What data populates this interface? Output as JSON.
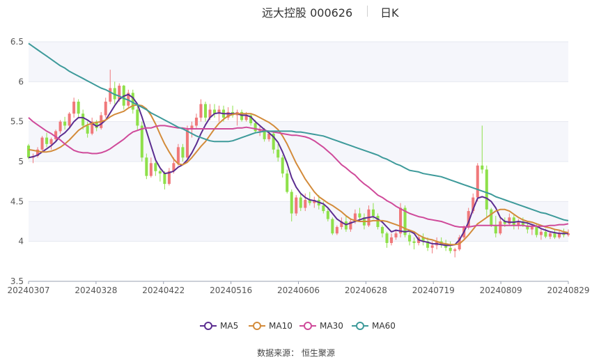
{
  "header": {
    "title": "远大控股 000626",
    "period": "日K"
  },
  "legend": {
    "items": [
      {
        "label": "MA5",
        "color": "#5b2d90"
      },
      {
        "label": "MA10",
        "color": "#d38b3a"
      },
      {
        "label": "MA30",
        "color": "#cf4a9a"
      },
      {
        "label": "MA60",
        "color": "#3d9a9a"
      }
    ]
  },
  "source": {
    "label": "数据来源：",
    "value": "恒生聚源"
  },
  "colors": {
    "up": "#f0787a",
    "down": "#8ee04a",
    "band": "#f5f6fb",
    "grid": "#e6e8f0"
  },
  "chart_data": {
    "type": "candlestick",
    "ylim": [
      3.5,
      6.5
    ],
    "yticks": [
      "3.5",
      "4",
      "4.5",
      "5",
      "5.5",
      "6",
      "6.5"
    ],
    "xticks": [
      "20240307",
      "20240328",
      "20240422",
      "20240516",
      "20240606",
      "20240628",
      "20240719",
      "20240809",
      "20240829"
    ],
    "grid": true,
    "legend_position": "bottom",
    "dates": [
      "20240307",
      "20240308",
      "20240311",
      "20240312",
      "20240313",
      "20240314",
      "20240315",
      "20240318",
      "20240319",
      "20240320",
      "20240321",
      "20240322",
      "20240325",
      "20240326",
      "20240327",
      "20240328",
      "20240329",
      "20240401",
      "20240402",
      "20240403",
      "20240408",
      "20240409",
      "20240410",
      "20240411",
      "20240412",
      "20240415",
      "20240416",
      "20240417",
      "20240418",
      "20240419",
      "20240422",
      "20240423",
      "20240424",
      "20240425",
      "20240426",
      "20240429",
      "20240430",
      "20240506",
      "20240507",
      "20240508",
      "20240509",
      "20240510",
      "20240513",
      "20240514",
      "20240515",
      "20240516",
      "20240517",
      "20240520",
      "20240521",
      "20240522",
      "20240523",
      "20240524",
      "20240527",
      "20240528",
      "20240529",
      "20240530",
      "20240531",
      "20240603",
      "20240604",
      "20240605",
      "20240606",
      "20240607",
      "20240611",
      "20240612",
      "20240613",
      "20240614",
      "20240617",
      "20240618",
      "20240619",
      "20240620",
      "20240621",
      "20240624",
      "20240625",
      "20240626",
      "20240627",
      "20240628",
      "20240701",
      "20240702",
      "20240703",
      "20240704",
      "20240705",
      "20240708",
      "20240709",
      "20240710",
      "20240711",
      "20240712",
      "20240715",
      "20240716",
      "20240717",
      "20240718",
      "20240719",
      "20240722",
      "20240723",
      "20240724",
      "20240725",
      "20240726",
      "20240729",
      "20240730",
      "20240731",
      "20240801",
      "20240802",
      "20240805",
      "20240806",
      "20240807",
      "20240808",
      "20240809",
      "20240812",
      "20240813",
      "20240814",
      "20240815",
      "20240816",
      "20240819",
      "20240820",
      "20240821",
      "20240822",
      "20240823",
      "20240826",
      "20240827",
      "20240828",
      "20240829"
    ],
    "ohlc": [
      [
        5.2,
        5.22,
        5.03,
        5.05
      ],
      [
        5.05,
        5.1,
        4.98,
        5.07
      ],
      [
        5.07,
        5.18,
        5.05,
        5.15
      ],
      [
        5.15,
        5.32,
        5.12,
        5.3
      ],
      [
        5.3,
        5.36,
        5.18,
        5.22
      ],
      [
        5.22,
        5.3,
        5.15,
        5.28
      ],
      [
        5.28,
        5.4,
        5.25,
        5.38
      ],
      [
        5.38,
        5.52,
        5.35,
        5.5
      ],
      [
        5.5,
        5.56,
        5.4,
        5.45
      ],
      [
        5.45,
        5.62,
        5.42,
        5.6
      ],
      [
        5.6,
        5.8,
        5.55,
        5.75
      ],
      [
        5.75,
        5.78,
        5.55,
        5.6
      ],
      [
        5.6,
        5.65,
        5.4,
        5.45
      ],
      [
        5.45,
        5.5,
        5.3,
        5.35
      ],
      [
        5.35,
        5.55,
        5.33,
        5.5
      ],
      [
        5.5,
        5.52,
        5.38,
        5.42
      ],
      [
        5.42,
        5.62,
        5.4,
        5.58
      ],
      [
        5.58,
        5.8,
        5.55,
        5.75
      ],
      [
        5.75,
        6.15,
        5.72,
        5.92
      ],
      [
        5.92,
        6.0,
        5.72,
        5.78
      ],
      [
        5.78,
        5.98,
        5.75,
        5.95
      ],
      [
        5.95,
        5.96,
        5.65,
        5.7
      ],
      [
        5.7,
        5.9,
        5.68,
        5.86
      ],
      [
        5.86,
        5.9,
        5.6,
        5.65
      ],
      [
        5.65,
        5.72,
        5.4,
        5.45
      ],
      [
        5.45,
        5.5,
        5.0,
        5.05
      ],
      [
        5.05,
        5.1,
        4.78,
        4.82
      ],
      [
        4.82,
        5.05,
        4.8,
        4.98
      ],
      [
        4.98,
        5.0,
        4.82,
        4.88
      ],
      [
        4.88,
        4.9,
        4.75,
        4.85
      ],
      [
        4.85,
        4.88,
        4.65,
        4.72
      ],
      [
        4.72,
        4.92,
        4.7,
        4.88
      ],
      [
        4.88,
        5.05,
        4.85,
        4.98
      ],
      [
        4.98,
        5.22,
        4.95,
        5.18
      ],
      [
        5.18,
        5.22,
        5.0,
        5.05
      ],
      [
        5.05,
        5.45,
        5.03,
        5.4
      ],
      [
        5.4,
        5.5,
        5.3,
        5.45
      ],
      [
        5.45,
        5.6,
        5.42,
        5.55
      ],
      [
        5.55,
        5.78,
        5.5,
        5.72
      ],
      [
        5.72,
        5.75,
        5.5,
        5.55
      ],
      [
        5.55,
        5.72,
        5.52,
        5.65
      ],
      [
        5.65,
        5.72,
        5.55,
        5.6
      ],
      [
        5.6,
        5.7,
        5.5,
        5.65
      ],
      [
        5.65,
        5.7,
        5.5,
        5.55
      ],
      [
        5.55,
        5.68,
        5.52,
        5.62
      ],
      [
        5.62,
        5.7,
        5.55,
        5.58
      ],
      [
        5.58,
        5.65,
        5.45,
        5.62
      ],
      [
        5.62,
        5.65,
        5.5,
        5.52
      ],
      [
        5.52,
        5.62,
        5.5,
        5.58
      ],
      [
        5.58,
        5.6,
        5.45,
        5.48
      ],
      [
        5.48,
        5.52,
        5.35,
        5.38
      ],
      [
        5.38,
        5.45,
        5.32,
        5.4
      ],
      [
        5.4,
        5.42,
        5.25,
        5.28
      ],
      [
        5.28,
        5.38,
        5.25,
        5.35
      ],
      [
        5.35,
        5.38,
        5.1,
        5.15
      ],
      [
        5.15,
        5.22,
        5.0,
        5.05
      ],
      [
        5.05,
        5.08,
        4.8,
        4.85
      ],
      [
        4.85,
        4.9,
        4.6,
        4.62
      ],
      [
        4.62,
        4.65,
        4.25,
        4.35
      ],
      [
        4.35,
        4.58,
        4.32,
        4.55
      ],
      [
        4.55,
        4.6,
        4.38,
        4.42
      ],
      [
        4.42,
        4.6,
        4.38,
        4.52
      ],
      [
        4.52,
        4.62,
        4.45,
        4.48
      ],
      [
        4.48,
        4.56,
        4.42,
        4.52
      ],
      [
        4.52,
        4.58,
        4.4,
        4.45
      ],
      [
        4.45,
        4.5,
        4.35,
        4.38
      ],
      [
        4.38,
        4.42,
        4.25,
        4.28
      ],
      [
        4.28,
        4.3,
        4.08,
        4.1
      ],
      [
        4.1,
        4.2,
        4.08,
        4.18
      ],
      [
        4.18,
        4.3,
        4.15,
        4.25
      ],
      [
        4.25,
        4.32,
        4.12,
        4.15
      ],
      [
        4.15,
        4.28,
        4.12,
        4.25
      ],
      [
        4.25,
        4.4,
        4.22,
        4.35
      ],
      [
        4.35,
        4.42,
        4.25,
        4.3
      ],
      [
        4.3,
        4.35,
        4.15,
        4.2
      ],
      [
        4.2,
        4.45,
        4.18,
        4.4
      ],
      [
        4.4,
        4.48,
        4.28,
        4.32
      ],
      [
        4.32,
        4.35,
        4.15,
        4.18
      ],
      [
        4.18,
        4.2,
        4.05,
        4.1
      ],
      [
        4.1,
        4.12,
        3.92,
        3.98
      ],
      [
        3.98,
        4.1,
        3.95,
        4.05
      ],
      [
        4.05,
        4.15,
        4.02,
        4.1
      ],
      [
        4.1,
        4.48,
        4.05,
        4.42
      ],
      [
        4.42,
        4.45,
        4.05,
        4.08
      ],
      [
        4.08,
        4.12,
        3.95,
        4.0
      ],
      [
        4.0,
        4.05,
        3.9,
        3.98
      ],
      [
        3.98,
        4.08,
        3.95,
        4.05
      ],
      [
        4.05,
        4.1,
        3.95,
        4.0
      ],
      [
        4.0,
        4.05,
        3.88,
        3.92
      ],
      [
        3.92,
        4.0,
        3.85,
        3.95
      ],
      [
        3.95,
        4.05,
        3.9,
        4.0
      ],
      [
        4.0,
        4.05,
        3.92,
        3.96
      ],
      [
        3.96,
        4.02,
        3.88,
        3.92
      ],
      [
        3.92,
        4.0,
        3.85,
        3.88
      ],
      [
        3.88,
        3.92,
        3.8,
        3.9
      ],
      [
        3.9,
        4.08,
        3.88,
        4.05
      ],
      [
        4.05,
        4.2,
        4.02,
        4.18
      ],
      [
        4.18,
        4.42,
        4.15,
        4.38
      ],
      [
        4.38,
        4.6,
        4.35,
        4.55
      ],
      [
        4.55,
        4.98,
        4.5,
        4.95
      ],
      [
        4.95,
        5.45,
        4.85,
        4.9
      ],
      [
        4.9,
        4.95,
        4.3,
        4.4
      ],
      [
        4.4,
        4.42,
        4.18,
        4.2
      ],
      [
        4.2,
        4.32,
        4.05,
        4.1
      ],
      [
        4.1,
        4.3,
        4.08,
        4.25
      ],
      [
        4.25,
        4.3,
        4.18,
        4.22
      ],
      [
        4.22,
        4.35,
        4.2,
        4.3
      ],
      [
        4.3,
        4.33,
        4.15,
        4.2
      ],
      [
        4.2,
        4.28,
        4.15,
        4.25
      ],
      [
        4.25,
        4.3,
        4.18,
        4.2
      ],
      [
        4.2,
        4.25,
        4.1,
        4.15
      ],
      [
        4.15,
        4.2,
        4.08,
        4.18
      ],
      [
        4.18,
        4.22,
        4.05,
        4.08
      ],
      [
        4.08,
        4.15,
        4.02,
        4.12
      ],
      [
        4.12,
        4.16,
        4.04,
        4.06
      ],
      [
        4.06,
        4.12,
        4.03,
        4.1
      ],
      [
        4.1,
        4.14,
        4.03,
        4.05
      ],
      [
        4.05,
        4.13,
        4.03,
        4.1
      ],
      [
        4.1,
        4.16,
        4.05,
        4.08
      ],
      [
        4.08,
        4.15,
        4.06,
        4.1
      ]
    ],
    "ma_series": [
      {
        "name": "MA5",
        "values": [
          5.05,
          5.06,
          5.08,
          5.12,
          5.16,
          5.2,
          5.25,
          5.32,
          5.36,
          5.42,
          5.5,
          5.55,
          5.55,
          5.52,
          5.48,
          5.44,
          5.47,
          5.52,
          5.61,
          5.7,
          5.78,
          5.82,
          5.84,
          5.8,
          5.72,
          5.56,
          5.38,
          5.2,
          5.02,
          4.92,
          4.85,
          4.86,
          4.88,
          4.93,
          4.96,
          5.02,
          5.11,
          5.22,
          5.35,
          5.46,
          5.55,
          5.6,
          5.61,
          5.6,
          5.6,
          5.6,
          5.6,
          5.58,
          5.58,
          5.56,
          5.5,
          5.45,
          5.4,
          5.36,
          5.31,
          5.24,
          5.12,
          4.98,
          4.8,
          4.68,
          4.6,
          4.55,
          4.52,
          4.51,
          4.49,
          4.47,
          4.42,
          4.35,
          4.28,
          4.24,
          4.21,
          4.23,
          4.25,
          4.27,
          4.29,
          4.3,
          4.31,
          4.28,
          4.24,
          4.18,
          4.12,
          4.14,
          4.13,
          4.12,
          4.13,
          4.1,
          4.02,
          4.0,
          3.99,
          3.97,
          3.97,
          3.96,
          3.95,
          3.95,
          3.96,
          4.02,
          4.12,
          4.24,
          4.4,
          4.54,
          4.56,
          4.54,
          4.5,
          4.42,
          4.3,
          4.25,
          4.24,
          4.24,
          4.25,
          4.24,
          4.23,
          4.21,
          4.19,
          4.16,
          4.14,
          4.12,
          4.11,
          4.1,
          4.1,
          4.1
        ]
      },
      {
        "name": "MA10",
        "values": [
          5.15,
          5.14,
          5.13,
          5.12,
          5.12,
          5.13,
          5.15,
          5.18,
          5.22,
          5.27,
          5.33,
          5.39,
          5.43,
          5.46,
          5.48,
          5.49,
          5.5,
          5.52,
          5.56,
          5.59,
          5.61,
          5.63,
          5.67,
          5.7,
          5.71,
          5.7,
          5.66,
          5.58,
          5.47,
          5.34,
          5.22,
          5.12,
          5.03,
          4.97,
          4.96,
          4.99,
          5.05,
          5.12,
          5.19,
          5.25,
          5.33,
          5.41,
          5.48,
          5.53,
          5.57,
          5.59,
          5.6,
          5.6,
          5.6,
          5.6,
          5.58,
          5.55,
          5.52,
          5.49,
          5.45,
          5.4,
          5.32,
          5.22,
          5.1,
          4.98,
          4.88,
          4.78,
          4.7,
          4.62,
          4.56,
          4.52,
          4.48,
          4.45,
          4.41,
          4.37,
          4.32,
          4.28,
          4.26,
          4.25,
          4.25,
          4.25,
          4.26,
          4.26,
          4.26,
          4.25,
          4.23,
          4.21,
          4.19,
          4.16,
          4.14,
          4.12,
          4.08,
          4.05,
          4.03,
          4.02,
          4.0,
          3.98,
          3.97,
          3.96,
          3.96,
          3.97,
          4.02,
          4.08,
          4.15,
          4.22,
          4.26,
          4.3,
          4.34,
          4.38,
          4.4,
          4.4,
          4.38,
          4.34,
          4.3,
          4.27,
          4.25,
          4.24,
          4.22,
          4.2,
          4.18,
          4.17,
          4.15,
          4.14,
          4.12,
          4.11
        ]
      },
      {
        "name": "MA30",
        "values": [
          5.55,
          5.5,
          5.46,
          5.42,
          5.38,
          5.35,
          5.31,
          5.27,
          5.22,
          5.18,
          5.14,
          5.12,
          5.11,
          5.11,
          5.1,
          5.1,
          5.11,
          5.13,
          5.16,
          5.2,
          5.24,
          5.28,
          5.33,
          5.37,
          5.39,
          5.41,
          5.42,
          5.42,
          5.44,
          5.45,
          5.45,
          5.44,
          5.43,
          5.42,
          5.42,
          5.41,
          5.41,
          5.41,
          5.41,
          5.41,
          5.41,
          5.41,
          5.41,
          5.41,
          5.41,
          5.41,
          5.42,
          5.42,
          5.43,
          5.42,
          5.41,
          5.4,
          5.39,
          5.38,
          5.37,
          5.36,
          5.35,
          5.34,
          5.33,
          5.33,
          5.32,
          5.31,
          5.29,
          5.26,
          5.22,
          5.18,
          5.13,
          5.08,
          5.02,
          4.96,
          4.92,
          4.87,
          4.83,
          4.77,
          4.72,
          4.68,
          4.63,
          4.58,
          4.55,
          4.51,
          4.48,
          4.44,
          4.41,
          4.38,
          4.35,
          4.33,
          4.31,
          4.3,
          4.28,
          4.27,
          4.26,
          4.25,
          4.23,
          4.21,
          4.19,
          4.18,
          4.18,
          4.18,
          4.19,
          4.2,
          4.2,
          4.2,
          4.2,
          4.2,
          4.2,
          4.2,
          4.2,
          4.2,
          4.2,
          4.2,
          4.19,
          4.19,
          4.19,
          4.19,
          4.19,
          4.2,
          4.2,
          4.21,
          4.21,
          4.22
        ]
      },
      {
        "name": "MA60",
        "values": [
          6.48,
          6.44,
          6.4,
          6.36,
          6.32,
          6.28,
          6.24,
          6.2,
          6.17,
          6.13,
          6.1,
          6.07,
          6.04,
          6.01,
          5.98,
          5.95,
          5.92,
          5.9,
          5.87,
          5.84,
          5.82,
          5.79,
          5.77,
          5.74,
          5.71,
          5.68,
          5.65,
          5.61,
          5.58,
          5.55,
          5.52,
          5.49,
          5.46,
          5.43,
          5.41,
          5.38,
          5.35,
          5.32,
          5.3,
          5.28,
          5.26,
          5.25,
          5.25,
          5.25,
          5.25,
          5.26,
          5.28,
          5.3,
          5.32,
          5.34,
          5.36,
          5.37,
          5.38,
          5.38,
          5.38,
          5.38,
          5.38,
          5.38,
          5.38,
          5.37,
          5.37,
          5.36,
          5.35,
          5.34,
          5.33,
          5.32,
          5.3,
          5.28,
          5.26,
          5.24,
          5.22,
          5.2,
          5.18,
          5.16,
          5.14,
          5.12,
          5.1,
          5.08,
          5.05,
          5.03,
          5.0,
          4.97,
          4.95,
          4.92,
          4.89,
          4.88,
          4.87,
          4.85,
          4.84,
          4.83,
          4.82,
          4.81,
          4.79,
          4.77,
          4.75,
          4.73,
          4.71,
          4.69,
          4.67,
          4.65,
          4.63,
          4.61,
          4.59,
          4.56,
          4.54,
          4.52,
          4.5,
          4.48,
          4.46,
          4.44,
          4.42,
          4.4,
          4.38,
          4.36,
          4.35,
          4.33,
          4.31,
          4.29,
          4.27,
          4.26
        ]
      }
    ]
  }
}
